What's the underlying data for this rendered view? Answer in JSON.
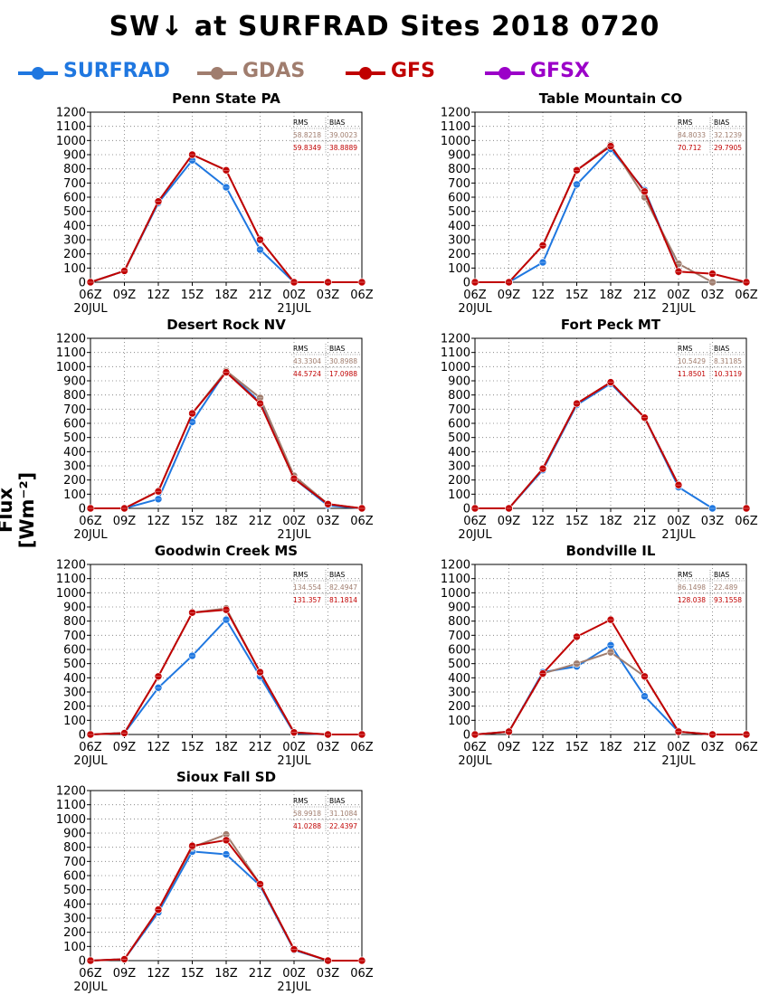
{
  "title": "SW↓ at SURFRAD Sites     2018 0720",
  "y_axis_label": "Flux [Wm⁻²]",
  "legend": [
    {
      "label": "SURFRAD",
      "color": "#1f77e0"
    },
    {
      "label": "GDAS",
      "color": "#a07d6e"
    },
    {
      "label": "GFS",
      "color": "#c00000"
    },
    {
      "label": "GFSX",
      "color": "#9b00c8"
    }
  ],
  "chart_data": [
    {
      "type": "line",
      "title": "Penn State PA",
      "categories": [
        "06Z",
        "09Z",
        "12Z",
        "15Z",
        "18Z",
        "21Z",
        "00Z",
        "03Z",
        "06Z"
      ],
      "date_labels": [
        "20JUL",
        "21JUL"
      ],
      "ylim": [
        0,
        1200
      ],
      "yticks": [
        0,
        100,
        200,
        300,
        400,
        500,
        600,
        700,
        800,
        900,
        1000,
        1100,
        1200
      ],
      "grid": true,
      "stats": {
        "header": [
          "RMS",
          "BIAS"
        ],
        "gdas": [
          "58.8218",
          "39.0023"
        ],
        "gfs": [
          "59.8349",
          "38.8889"
        ]
      },
      "series": [
        {
          "name": "SURFRAD",
          "values": [
            0,
            80,
            560,
            860,
            670,
            230,
            0,
            0,
            0
          ]
        },
        {
          "name": "GDAS",
          "values": [
            0,
            80,
            570,
            900,
            790,
            300,
            0,
            0,
            0
          ]
        },
        {
          "name": "GFS",
          "values": [
            0,
            80,
            570,
            900,
            790,
            300,
            0,
            0,
            0
          ]
        }
      ]
    },
    {
      "type": "line",
      "title": "Table Mountain CO",
      "categories": [
        "06Z",
        "09Z",
        "12Z",
        "15Z",
        "18Z",
        "21Z",
        "00Z",
        "03Z",
        "06Z"
      ],
      "date_labels": [
        "20JUL",
        "21JUL"
      ],
      "ylim": [
        0,
        1200
      ],
      "yticks": [
        0,
        100,
        200,
        300,
        400,
        500,
        600,
        700,
        800,
        900,
        1000,
        1100,
        1200
      ],
      "grid": true,
      "stats": {
        "header": [
          "RMS",
          "BIAS"
        ],
        "gdas": [
          "84.8033",
          "32.1239"
        ],
        "gfs": [
          "70.712",
          "29.7905"
        ]
      },
      "series": [
        {
          "name": "SURFRAD",
          "values": [
            0,
            0,
            140,
            690,
            940,
            650,
            80,
            null,
            null
          ]
        },
        {
          "name": "GDAS",
          "values": [
            0,
            0,
            260,
            790,
            970,
            600,
            130,
            0,
            null
          ]
        },
        {
          "name": "GFS",
          "values": [
            0,
            0,
            260,
            790,
            960,
            640,
            75,
            60,
            0
          ]
        }
      ]
    },
    {
      "type": "line",
      "title": "Desert Rock NV",
      "categories": [
        "06Z",
        "09Z",
        "12Z",
        "15Z",
        "18Z",
        "21Z",
        "00Z",
        "03Z",
        "06Z"
      ],
      "date_labels": [
        "20JUL",
        "21JUL"
      ],
      "ylim": [
        0,
        1200
      ],
      "yticks": [
        0,
        100,
        200,
        300,
        400,
        500,
        600,
        700,
        800,
        900,
        1000,
        1100,
        1200
      ],
      "grid": true,
      "stats": {
        "header": [
          "RMS",
          "BIAS"
        ],
        "gdas": [
          "43.3304",
          "30.8988"
        ],
        "gfs": [
          "44.5724",
          "17.0988"
        ]
      },
      "series": [
        {
          "name": "SURFRAD",
          "values": [
            0,
            0,
            65,
            610,
            970,
            750,
            210,
            20,
            0
          ]
        },
        {
          "name": "GDAS",
          "values": [
            0,
            0,
            120,
            670,
            970,
            780,
            230,
            30,
            0
          ]
        },
        {
          "name": "GFS",
          "values": [
            0,
            0,
            120,
            670,
            960,
            740,
            210,
            30,
            0
          ]
        }
      ]
    },
    {
      "type": "line",
      "title": "Fort Peck MT",
      "categories": [
        "06Z",
        "09Z",
        "12Z",
        "15Z",
        "18Z",
        "21Z",
        "00Z",
        "03Z",
        "06Z"
      ],
      "date_labels": [
        "20JUL",
        "21JUL"
      ],
      "ylim": [
        0,
        1200
      ],
      "yticks": [
        0,
        100,
        200,
        300,
        400,
        500,
        600,
        700,
        800,
        900,
        1000,
        1100,
        1200
      ],
      "grid": true,
      "stats": {
        "header": [
          "RMS",
          "BIAS"
        ],
        "gdas": [
          "10.5429",
          "8.31185"
        ],
        "gfs": [
          "11.8501",
          "10.3119"
        ]
      },
      "series": [
        {
          "name": "SURFRAD",
          "values": [
            0,
            0,
            270,
            730,
            880,
            640,
            150,
            0,
            null
          ]
        },
        {
          "name": "GDAS",
          "values": [
            0,
            0,
            280,
            740,
            890,
            640,
            165,
            null,
            0
          ]
        },
        {
          "name": "GFS",
          "values": [
            0,
            0,
            280,
            740,
            890,
            640,
            165,
            null,
            0
          ]
        }
      ]
    },
    {
      "type": "line",
      "title": "Goodwin Creek MS",
      "categories": [
        "06Z",
        "09Z",
        "12Z",
        "15Z",
        "18Z",
        "21Z",
        "00Z",
        "03Z",
        "06Z"
      ],
      "date_labels": [
        "20JUL",
        "21JUL"
      ],
      "ylim": [
        0,
        1200
      ],
      "yticks": [
        0,
        100,
        200,
        300,
        400,
        500,
        600,
        700,
        800,
        900,
        1000,
        1100,
        1200
      ],
      "grid": true,
      "stats": {
        "header": [
          "RMS",
          "BIAS"
        ],
        "gdas": [
          "134.554",
          "82.4947"
        ],
        "gfs": [
          "131.357",
          "81.1814"
        ]
      },
      "series": [
        {
          "name": "SURFRAD",
          "values": [
            0,
            10,
            330,
            555,
            810,
            410,
            10,
            0,
            0
          ]
        },
        {
          "name": "GDAS",
          "values": [
            0,
            10,
            410,
            860,
            890,
            440,
            15,
            0,
            0
          ]
        },
        {
          "name": "GFS",
          "values": [
            0,
            10,
            410,
            860,
            880,
            440,
            15,
            0,
            0
          ]
        }
      ]
    },
    {
      "type": "line",
      "title": "Bondville IL",
      "categories": [
        "06Z",
        "09Z",
        "12Z",
        "15Z",
        "18Z",
        "21Z",
        "00Z",
        "03Z",
        "06Z"
      ],
      "date_labels": [
        "20JUL",
        "21JUL"
      ],
      "ylim": [
        0,
        1200
      ],
      "yticks": [
        0,
        100,
        200,
        300,
        400,
        500,
        600,
        700,
        800,
        900,
        1000,
        1100,
        1200
      ],
      "grid": true,
      "stats": {
        "header": [
          "RMS",
          "BIAS"
        ],
        "gdas": [
          "86.1498",
          "22.489"
        ],
        "gfs": [
          "128.038",
          "93.1558"
        ]
      },
      "series": [
        {
          "name": "SURFRAD",
          "values": [
            0,
            20,
            440,
            480,
            630,
            270,
            20,
            0,
            0
          ]
        },
        {
          "name": "GDAS",
          "values": [
            0,
            20,
            430,
            500,
            580,
            410,
            20,
            0,
            0
          ]
        },
        {
          "name": "GFS",
          "values": [
            0,
            20,
            430,
            690,
            810,
            410,
            20,
            0,
            0
          ]
        }
      ]
    },
    {
      "type": "line",
      "title": "Sioux Fall SD",
      "categories": [
        "06Z",
        "09Z",
        "12Z",
        "15Z",
        "18Z",
        "21Z",
        "00Z",
        "03Z",
        "06Z"
      ],
      "date_labels": [
        "20JUL",
        "21JUL"
      ],
      "ylim": [
        0,
        1200
      ],
      "yticks": [
        0,
        100,
        200,
        300,
        400,
        500,
        600,
        700,
        800,
        900,
        1000,
        1100,
        1200
      ],
      "grid": true,
      "stats": {
        "header": [
          "RMS",
          "BIAS"
        ],
        "gdas": [
          "58.9918",
          "31.1084"
        ],
        "gfs": [
          "41.0288",
          "22.4397"
        ]
      },
      "series": [
        {
          "name": "SURFRAD",
          "values": [
            0,
            10,
            340,
            770,
            750,
            530,
            75,
            0,
            0
          ]
        },
        {
          "name": "GDAS",
          "values": [
            0,
            10,
            360,
            800,
            890,
            540,
            80,
            0,
            0
          ]
        },
        {
          "name": "GFS",
          "values": [
            0,
            10,
            360,
            810,
            850,
            540,
            80,
            0,
            0
          ]
        }
      ]
    }
  ]
}
